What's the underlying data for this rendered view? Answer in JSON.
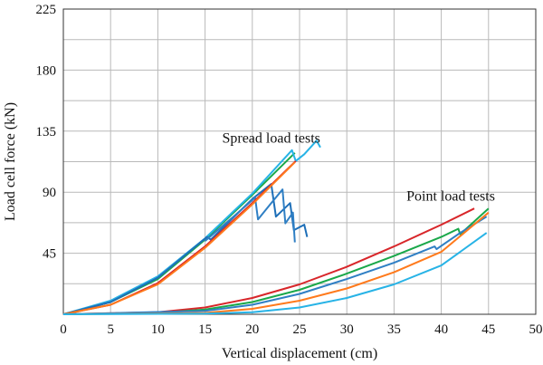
{
  "chart_data": {
    "type": "line",
    "xlabel": "Vertical displacement (cm)",
    "ylabel": "Load cell force (kN)",
    "xlim": [
      0,
      50
    ],
    "ylim": [
      0,
      225
    ],
    "x_ticks": [
      "0",
      "5",
      "10",
      "15",
      "20",
      "25",
      "30",
      "35",
      "40",
      "45",
      "50"
    ],
    "y_ticks": [
      "45",
      "90",
      "135",
      "180",
      "225"
    ],
    "x_tick_values": [
      0,
      5,
      10,
      15,
      20,
      25,
      30,
      35,
      40,
      45,
      50
    ],
    "y_tick_values": [
      45,
      90,
      135,
      180,
      225
    ],
    "grid": true,
    "annotations": [
      {
        "text": "Spread load tests",
        "x": 22,
        "y": 130
      },
      {
        "text": "Point load tests",
        "x": 41,
        "y": 87
      }
    ],
    "series": [
      {
        "group": "spread",
        "color": "#1aa84a",
        "points": [
          [
            0,
            0
          ],
          [
            5,
            9
          ],
          [
            10,
            26
          ],
          [
            15,
            55
          ],
          [
            20,
            88
          ],
          [
            24.5,
            119
          ]
        ]
      },
      {
        "group": "spread",
        "color": "#27b3e6",
        "points": [
          [
            0,
            0
          ],
          [
            5,
            10
          ],
          [
            10,
            28
          ],
          [
            15,
            56
          ],
          [
            20,
            89
          ],
          [
            24.2,
            121
          ],
          [
            24.6,
            113
          ],
          [
            25.5,
            118
          ],
          [
            26.8,
            128
          ],
          [
            27.2,
            123
          ]
        ]
      },
      {
        "group": "spread",
        "color": "#1e6fb8",
        "points": [
          [
            0,
            0
          ],
          [
            5,
            9
          ],
          [
            10,
            27
          ],
          [
            15.2,
            57
          ],
          [
            15.6,
            55
          ],
          [
            20,
            85
          ],
          [
            22,
            96
          ],
          [
            22.5,
            72
          ],
          [
            24,
            82
          ],
          [
            24.4,
            62
          ],
          [
            25.5,
            66
          ],
          [
            25.8,
            57
          ]
        ]
      },
      {
        "group": "spread",
        "color": "#2f7fc4",
        "points": [
          [
            15,
            54
          ],
          [
            18,
            72
          ],
          [
            20.3,
            86
          ],
          [
            20.6,
            70
          ],
          [
            22,
            82
          ],
          [
            23.2,
            92
          ],
          [
            23.5,
            67
          ],
          [
            24.3,
            75
          ],
          [
            24.5,
            53
          ]
        ]
      },
      {
        "group": "spread",
        "color": "#d8262a",
        "points": [
          [
            0,
            0
          ],
          [
            5,
            7
          ],
          [
            10,
            23
          ],
          [
            15,
            50
          ],
          [
            20,
            82
          ],
          [
            24.6,
            113
          ]
        ]
      },
      {
        "group": "spread",
        "color": "#ff7a1c",
        "points": [
          [
            0,
            0
          ],
          [
            5,
            7
          ],
          [
            10,
            22
          ],
          [
            15,
            49
          ],
          [
            20,
            81
          ],
          [
            24.5,
            112
          ]
        ]
      },
      {
        "group": "point",
        "color": "#d8262a",
        "points": [
          [
            0,
            0
          ],
          [
            10,
            1.5
          ],
          [
            15,
            5
          ],
          [
            20,
            12
          ],
          [
            25,
            22
          ],
          [
            30,
            35
          ],
          [
            35,
            50
          ],
          [
            40,
            66
          ],
          [
            43.5,
            78
          ]
        ]
      },
      {
        "group": "point",
        "color": "#1aa84a",
        "points": [
          [
            0,
            0
          ],
          [
            10,
            1
          ],
          [
            15,
            3.5
          ],
          [
            20,
            9
          ],
          [
            25,
            18
          ],
          [
            30,
            30
          ],
          [
            35,
            43
          ],
          [
            40,
            57
          ],
          [
            41.8,
            63
          ],
          [
            42,
            59
          ],
          [
            45,
            78
          ]
        ]
      },
      {
        "group": "point",
        "color": "#2f7fc4",
        "points": [
          [
            0,
            0
          ],
          [
            15,
            2.5
          ],
          [
            20,
            7
          ],
          [
            25,
            15
          ],
          [
            30,
            26
          ],
          [
            35,
            38
          ],
          [
            39.3,
            50
          ],
          [
            39.5,
            48
          ],
          [
            42,
            60
          ],
          [
            44.8,
            72
          ]
        ]
      },
      {
        "group": "point",
        "color": "#ff7a1c",
        "points": [
          [
            0,
            0
          ],
          [
            15,
            1
          ],
          [
            20,
            4
          ],
          [
            25,
            10
          ],
          [
            30,
            19
          ],
          [
            35,
            31
          ],
          [
            40,
            46
          ],
          [
            45,
            75
          ]
        ]
      },
      {
        "group": "point",
        "color": "#27b3e6",
        "points": [
          [
            0,
            0
          ],
          [
            15,
            0.5
          ],
          [
            20,
            1.5
          ],
          [
            25,
            5
          ],
          [
            30,
            12
          ],
          [
            35,
            22
          ],
          [
            40,
            36
          ],
          [
            44.8,
            60
          ]
        ]
      }
    ]
  }
}
